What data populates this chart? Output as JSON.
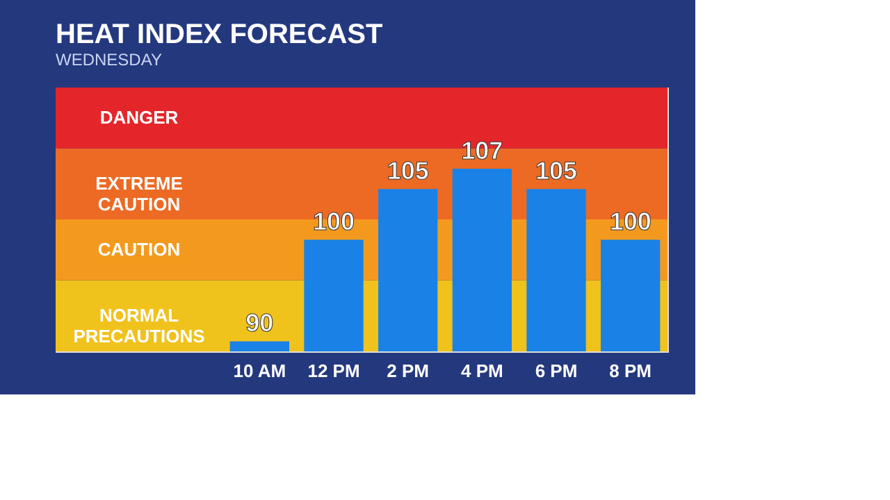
{
  "chart_data": {
    "type": "bar",
    "title": "HEAT INDEX FORECAST",
    "subtitle": "WEDNESDAY",
    "categories": [
      "10 AM",
      "12 PM",
      "2 PM",
      "4 PM",
      "6 PM",
      "8 PM"
    ],
    "values": [
      90,
      100,
      105,
      107,
      105,
      100
    ],
    "color": "#1a82e6",
    "data_labels": true,
    "ylim": [
      89,
      115
    ],
    "tick_labels": "x",
    "grid": false,
    "bands": [
      {
        "axis": "y",
        "from": 89,
        "to": 96,
        "label": "NORMAL PRECAUTIONS",
        "color": "#f0c21c"
      },
      {
        "axis": "y",
        "from": 96,
        "to": 102,
        "label": "CAUTION",
        "color": "#f39a1e"
      },
      {
        "axis": "y",
        "from": 102,
        "to": 109,
        "label": "EXTREME CAUTION",
        "color": "#ec6a24"
      },
      {
        "axis": "y",
        "from": 109,
        "to": 115,
        "label": "DANGER",
        "color": "#e4262b"
      }
    ]
  }
}
